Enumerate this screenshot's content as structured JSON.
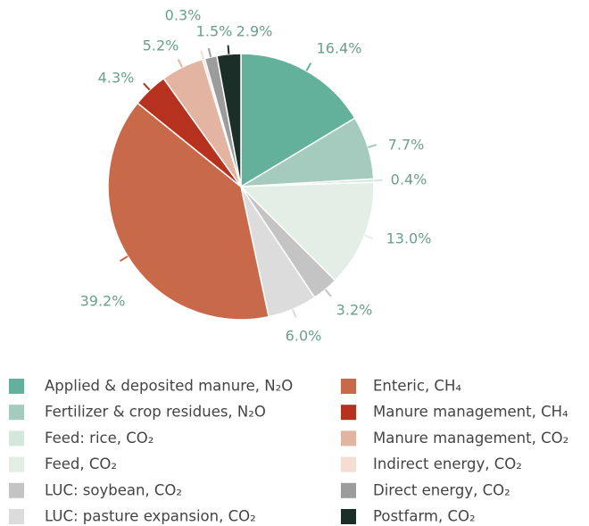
{
  "chart_data": {
    "type": "pie",
    "categories": [
      "Applied & deposited manure, N₂O",
      "Fertilizer & crop residues, N₂O",
      "Feed: rice, CO₂",
      "Feed, CO₂",
      "LUC: soybean, CO₂",
      "LUC: pasture expansion, CO₂",
      "Enteric, CH₄",
      "Manure management, CH₄",
      "Manure management, CO₂",
      "Indirect energy, CO₂",
      "Direct energy, CO₂",
      "Postfarm, CO₂"
    ],
    "values": [
      16.4,
      7.7,
      0.4,
      13.0,
      3.2,
      6.0,
      39.2,
      4.3,
      5.2,
      0.3,
      1.5,
      2.9
    ],
    "value_labels": [
      "16.4%",
      "7.7%",
      "0.4%",
      "13.0%",
      "3.2%",
      "6.0%",
      "39.2%",
      "4.3%",
      "5.2%",
      "0.3%",
      "1.5%",
      "2.9%"
    ],
    "colors": [
      "#63b19b",
      "#a4cbbd",
      "#d3e7dd",
      "#e3eee7",
      "#c4c4c4",
      "#dcdcdc",
      "#c8694a",
      "#b6321f",
      "#e3b4a1",
      "#f6ddd3",
      "#9c9c9c",
      "#1c2e28"
    ],
    "legend": "bottom"
  }
}
